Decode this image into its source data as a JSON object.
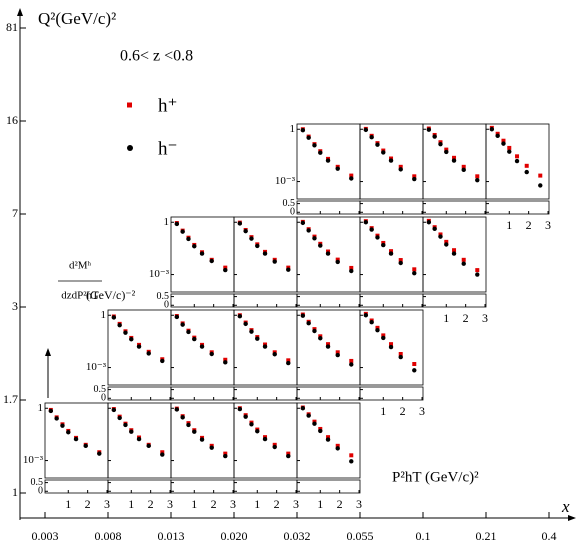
{
  "chart_data": {
    "type": "scatter",
    "y_title": "Q²(GeV/c)²",
    "x_title": "x",
    "annotation": "0.6< z <0.8",
    "panel_y_label": [
      "d²Mʰ",
      "dzdP²hT",
      "(GeV/c)⁻²"
    ],
    "panel_x_label": "P²hT (GeV/c)²",
    "x_bin_edges": [
      "0.003",
      "0.008",
      "0.013",
      "0.020",
      "0.032",
      "0.055",
      "0.1",
      "0.21",
      "0.4"
    ],
    "q2_bin_edges": [
      "1",
      "1.7",
      "3",
      "7",
      "16",
      "81"
    ],
    "series": [
      {
        "name": "h⁺",
        "color": "#e00000"
      },
      {
        "name": "h⁻",
        "color": "#000000"
      }
    ],
    "log_y": true,
    "x": [
      0.1,
      0.4,
      0.7,
      1.0,
      1.4,
      1.9,
      2.6
    ],
    "xlim": [
      -0.15,
      3.05
    ],
    "xticks": [
      1,
      2,
      3
    ],
    "ylim": [
      0.0001,
      2
    ],
    "yticks": [
      1,
      {
        "value": 0.001,
        "label": "10⁻³"
      }
    ],
    "ratio_ylim": [
      -0.1,
      0.65
    ],
    "ratio_yticks": [
      0.5,
      0
    ],
    "panels": [
      {
        "x_bin": 0,
        "q2_bin": 0,
        "values": [
          [
            0.8,
            0.3,
            0.12,
            0.05,
            0.02,
            0.008,
            0.003
          ],
          [
            0.7,
            0.26,
            0.1,
            0.042,
            0.017,
            0.007,
            0.0025
          ]
        ]
      },
      {
        "x_bin": 1,
        "q2_bin": 0,
        "values": [
          [
            0.9,
            0.33,
            0.13,
            0.055,
            0.021,
            0.008,
            0.003
          ],
          [
            0.8,
            0.28,
            0.11,
            0.045,
            0.017,
            0.007,
            0.0022
          ]
        ]
      },
      {
        "x_bin": 2,
        "q2_bin": 0,
        "values": [
          [
            0.95,
            0.35,
            0.14,
            0.055,
            0.02,
            0.007,
            0.0025
          ],
          [
            0.85,
            0.3,
            0.11,
            0.045,
            0.016,
            0.0055,
            0.0018
          ]
        ]
      },
      {
        "x_bin": 3,
        "q2_bin": 0,
        "values": [
          [
            1.0,
            0.4,
            0.15,
            0.06,
            0.022,
            0.008,
            0.0025
          ],
          [
            0.9,
            0.33,
            0.12,
            0.048,
            0.017,
            0.006,
            0.0018
          ]
        ]
      },
      {
        "x_bin": 4,
        "q2_bin": 0,
        "values": [
          [
            1.1,
            0.45,
            0.17,
            0.065,
            0.022,
            0.007,
            0.002
          ],
          [
            1.0,
            0.38,
            0.13,
            0.05,
            0.016,
            0.005,
            0.0009
          ]
        ]
      },
      {
        "x_bin": 1,
        "q2_bin": 1,
        "values": [
          [
            0.85,
            0.32,
            0.12,
            0.05,
            0.02,
            0.008,
            0.003
          ],
          [
            0.75,
            0.27,
            0.1,
            0.042,
            0.016,
            0.0065,
            0.0024
          ]
        ]
      },
      {
        "x_bin": 2,
        "q2_bin": 1,
        "values": [
          [
            0.9,
            0.34,
            0.13,
            0.052,
            0.02,
            0.0075,
            0.0028
          ],
          [
            0.8,
            0.29,
            0.11,
            0.043,
            0.016,
            0.006,
            0.002
          ]
        ]
      },
      {
        "x_bin": 3,
        "q2_bin": 1,
        "values": [
          [
            1.0,
            0.38,
            0.14,
            0.056,
            0.021,
            0.0075,
            0.0026
          ],
          [
            0.88,
            0.32,
            0.115,
            0.045,
            0.016,
            0.0058,
            0.0018
          ]
        ]
      },
      {
        "x_bin": 4,
        "q2_bin": 1,
        "values": [
          [
            1.1,
            0.42,
            0.16,
            0.062,
            0.022,
            0.0075,
            0.0024
          ],
          [
            0.95,
            0.35,
            0.125,
            0.048,
            0.016,
            0.0052,
            0.0015
          ]
        ]
      },
      {
        "x_bin": 5,
        "q2_bin": 1,
        "values": [
          [
            1.2,
            0.5,
            0.19,
            0.07,
            0.022,
            0.006,
            0.0016
          ],
          [
            1.0,
            0.4,
            0.14,
            0.05,
            0.015,
            0.004,
            0.0007
          ]
        ]
      },
      {
        "x_bin": 2,
        "q2_bin": 2,
        "values": [
          [
            0.9,
            0.33,
            0.13,
            0.05,
            0.019,
            0.007,
            0.0025
          ],
          [
            0.8,
            0.29,
            0.11,
            0.042,
            0.016,
            0.006,
            0.0018
          ]
        ]
      },
      {
        "x_bin": 3,
        "q2_bin": 2,
        "values": [
          [
            0.95,
            0.36,
            0.14,
            0.054,
            0.02,
            0.007,
            0.0025
          ],
          [
            0.85,
            0.31,
            0.115,
            0.044,
            0.016,
            0.0056,
            0.0019
          ]
        ]
      },
      {
        "x_bin": 4,
        "q2_bin": 2,
        "values": [
          [
            1.05,
            0.4,
            0.15,
            0.058,
            0.021,
            0.0072,
            0.0024
          ],
          [
            0.92,
            0.34,
            0.12,
            0.046,
            0.016,
            0.0053,
            0.0016
          ]
        ]
      },
      {
        "x_bin": 5,
        "q2_bin": 2,
        "values": [
          [
            1.15,
            0.46,
            0.17,
            0.065,
            0.022,
            0.0068,
            0.002
          ],
          [
            1.0,
            0.38,
            0.135,
            0.049,
            0.016,
            0.0046,
            0.0012
          ]
        ]
      },
      {
        "x_bin": 6,
        "q2_bin": 2,
        "values": [
          [
            1.2,
            0.52,
            0.2,
            0.075,
            0.025,
            0.007,
            0.0018
          ],
          [
            1.0,
            0.42,
            0.15,
            0.053,
            0.016,
            0.0042,
            0.001
          ]
        ]
      },
      {
        "x_bin": 4,
        "q2_bin": 3,
        "values": [
          [
            1.0,
            0.38,
            0.14,
            0.055,
            0.02,
            0.007,
            0.0022
          ],
          [
            0.88,
            0.33,
            0.12,
            0.045,
            0.016,
            0.0055,
            0.0015
          ]
        ]
      },
      {
        "x_bin": 5,
        "q2_bin": 3,
        "values": [
          [
            1.05,
            0.42,
            0.16,
            0.06,
            0.021,
            0.007,
            0.002
          ],
          [
            0.92,
            0.35,
            0.13,
            0.047,
            0.016,
            0.005,
            0.0014
          ]
        ]
      },
      {
        "x_bin": 6,
        "q2_bin": 3,
        "values": [
          [
            1.1,
            0.47,
            0.18,
            0.068,
            0.023,
            0.007,
            0.002
          ],
          [
            0.95,
            0.38,
            0.14,
            0.05,
            0.016,
            0.0047,
            0.0012
          ]
        ]
      },
      {
        "x_bin": 7,
        "q2_bin": 3,
        "values": [
          [
            1.2,
            0.55,
            0.22,
            0.085,
            0.028,
            0.008,
            0.0022
          ],
          [
            1.0,
            0.42,
            0.15,
            0.052,
            0.015,
            0.0035,
            0.0006
          ]
        ]
      }
    ]
  }
}
